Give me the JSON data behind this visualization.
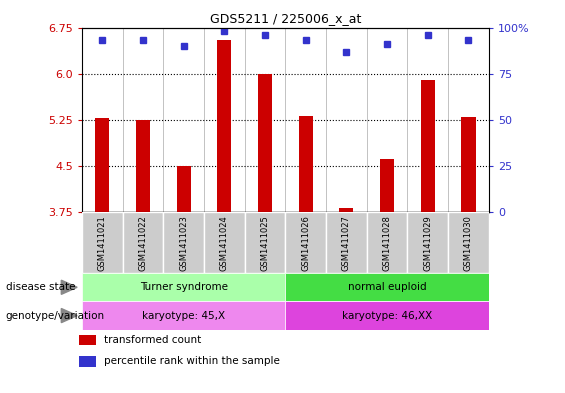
{
  "title": "GDS5211 / 225006_x_at",
  "samples": [
    "GSM1411021",
    "GSM1411022",
    "GSM1411023",
    "GSM1411024",
    "GSM1411025",
    "GSM1411026",
    "GSM1411027",
    "GSM1411028",
    "GSM1411029",
    "GSM1411030"
  ],
  "transformed_count": [
    5.28,
    5.25,
    4.5,
    6.55,
    6.0,
    5.32,
    3.82,
    4.62,
    5.9,
    5.3
  ],
  "percentile_rank": [
    93,
    93,
    90,
    98,
    96,
    93,
    87,
    91,
    96,
    93
  ],
  "ylim_left": [
    3.75,
    6.75
  ],
  "ylim_right": [
    0,
    100
  ],
  "yticks_left": [
    3.75,
    4.5,
    5.25,
    6.0,
    6.75
  ],
  "yticks_right": [
    0,
    25,
    50,
    75,
    100
  ],
  "hlines": [
    6.0,
    5.25,
    4.5
  ],
  "bar_color": "#cc0000",
  "dot_color": "#3333cc",
  "disease_state_groups": [
    {
      "label": "Turner syndrome",
      "start": 0,
      "end": 5,
      "color": "#aaffaa"
    },
    {
      "label": "normal euploid",
      "start": 5,
      "end": 10,
      "color": "#44dd44"
    }
  ],
  "genotype_groups": [
    {
      "label": "karyotype: 45,X",
      "start": 0,
      "end": 5,
      "color": "#ee88ee"
    },
    {
      "label": "karyotype: 46,XX",
      "start": 5,
      "end": 10,
      "color": "#dd44dd"
    }
  ],
  "legend_items": [
    {
      "label": "transformed count",
      "color": "#cc0000"
    },
    {
      "label": "percentile rank within the sample",
      "color": "#3333cc"
    }
  ],
  "row_labels": [
    "disease state",
    "genotype/variation"
  ],
  "tick_color_left": "#cc0000",
  "tick_color_right": "#3333cc",
  "bar_width": 0.35,
  "cell_bg": "#cccccc",
  "plot_bg": "#ffffff"
}
